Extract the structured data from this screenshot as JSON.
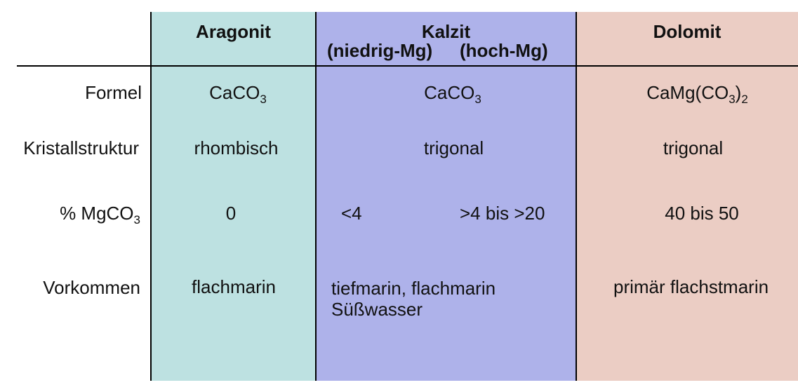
{
  "headers": {
    "aragonit": "Aragonit",
    "kalzit": "Kalzit",
    "kalzit_sub_low": "(niedrig-Mg)",
    "kalzit_sub_high": "(hoch-Mg)",
    "dolomit": "Dolomit"
  },
  "row_labels": {
    "formel": "Formel",
    "kristall": "Kristallstruktur",
    "mgco3_prefix": "% MgCO",
    "mgco3_sub": "3",
    "vorkommen": "Vorkommen"
  },
  "formel": {
    "aragonit": {
      "main": "CaCO",
      "sub": "3"
    },
    "kalzit": {
      "main": "CaCO",
      "sub": "3"
    },
    "dolomit": {
      "main": "CaMg(CO",
      "sub1": "3",
      "mid": ")",
      "sub2": "2"
    }
  },
  "kristall": {
    "aragonit": "rhombisch",
    "kalzit": "trigonal",
    "dolomit": "trigonal"
  },
  "mgco3": {
    "aragonit": "0",
    "kalzit_low": "<4",
    "kalzit_high": ">4 bis >20",
    "dolomit": "40 bis 50"
  },
  "vorkommen": {
    "aragonit": "flachmarin",
    "kalzit_line1": "tiefmarin, flachmarin",
    "kalzit_line2": "Süßwasser",
    "dolomit": "primär flachstmarin"
  },
  "colors": {
    "aragonit_bg": "#bde1e1",
    "kalzit_bg": "#aeb2ea",
    "dolomit_bg": "#ebcdc4"
  }
}
